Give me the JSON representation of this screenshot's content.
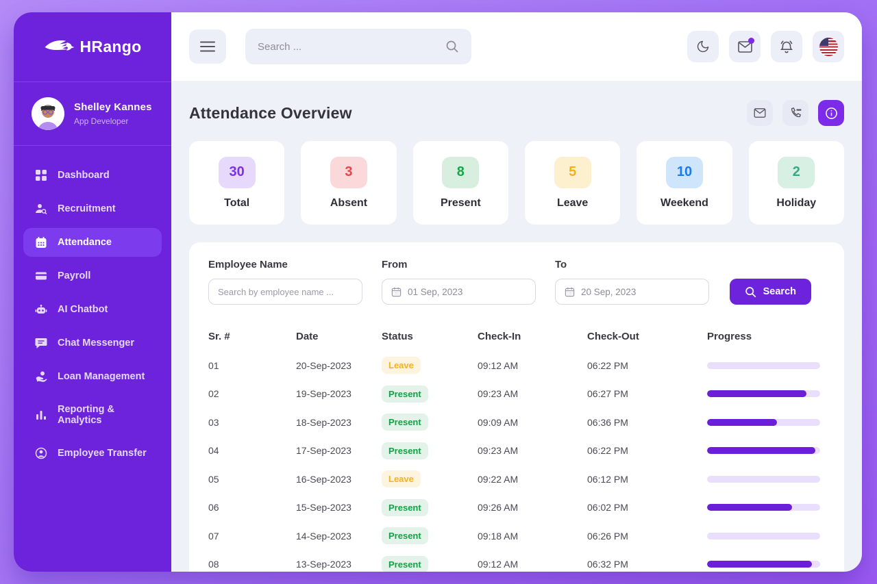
{
  "brand": {
    "name": "HRango",
    "logo_icon": "winged-horse-icon"
  },
  "sidebar": {
    "user": {
      "name": "Shelley Kannes",
      "role": "App Developer"
    },
    "items": [
      {
        "label": "Dashboard",
        "icon": "dashboard-grid-icon",
        "active": false
      },
      {
        "label": "Recruitment",
        "icon": "person-search-icon",
        "active": false
      },
      {
        "label": "Attendance",
        "icon": "calendar-icon",
        "active": true
      },
      {
        "label": "Payroll",
        "icon": "credit-card-icon",
        "active": false
      },
      {
        "label": "AI Chatbot",
        "icon": "robot-icon",
        "active": false
      },
      {
        "label": "Chat Messenger",
        "icon": "chat-bubble-icon",
        "active": false
      },
      {
        "label": "Loan Management",
        "icon": "hand-money-icon",
        "active": false
      },
      {
        "label": "Reporting & Analytics",
        "icon": "bar-chart-icon",
        "active": false
      },
      {
        "label": "Employee Transfer",
        "icon": "person-circle-icon",
        "active": false
      }
    ]
  },
  "topbar": {
    "search_placeholder": "Search ...",
    "icons": [
      "moon-icon",
      "mail-icon-with-badge",
      "bell-icon",
      "us-flag-icon"
    ]
  },
  "page": {
    "title": "Attendance Overview",
    "header_icons": [
      "mail-icon",
      "phone-icon",
      "info-icon"
    ]
  },
  "stats": [
    {
      "label": "Total",
      "value": "30",
      "badge_bg": "#E6D9FC",
      "badge_color": "#7C30E8"
    },
    {
      "label": "Absent",
      "value": "3",
      "badge_bg": "#FBD9DB",
      "badge_color": "#E8434A"
    },
    {
      "label": "Present",
      "value": "8",
      "badge_bg": "#D8EFDF",
      "badge_color": "#17A54B"
    },
    {
      "label": "Leave",
      "value": "5",
      "badge_bg": "#FDF0CE",
      "badge_color": "#F3B119"
    },
    {
      "label": "Weekend",
      "value": "10",
      "badge_bg": "#CFE5FB",
      "badge_color": "#1A7CEC"
    },
    {
      "label": "Holiday",
      "value": "2",
      "badge_bg": "#D7F0E3",
      "badge_color": "#3BA883"
    }
  ],
  "filters": {
    "employee_label": "Employee Name",
    "employee_placeholder": "Search by employee name ...",
    "from_label": "From",
    "from_value": "01 Sep, 2023",
    "to_label": "To",
    "to_value": "20 Sep, 2023",
    "search_label": "Search"
  },
  "table": {
    "headers": [
      "Sr. #",
      "Date",
      "Status",
      "Check-In",
      "Check-Out",
      "Progress"
    ],
    "rows": [
      {
        "sr": "01",
        "date": "20-Sep-2023",
        "status": "Leave",
        "check_in": "09:12 AM",
        "check_out": "06:22 PM",
        "progress": 0
      },
      {
        "sr": "02",
        "date": "19-Sep-2023",
        "status": "Present",
        "check_in": "09:23 AM",
        "check_out": "06:27 PM",
        "progress": 88
      },
      {
        "sr": "03",
        "date": "18-Sep-2023",
        "status": "Present",
        "check_in": "09:09 AM",
        "check_out": "06:36 PM",
        "progress": 62
      },
      {
        "sr": "04",
        "date": "17-Sep-2023",
        "status": "Present",
        "check_in": "09:23 AM",
        "check_out": "06:22 PM",
        "progress": 96
      },
      {
        "sr": "05",
        "date": "16-Sep-2023",
        "status": "Leave",
        "check_in": "09:22 AM",
        "check_out": "06:12 PM",
        "progress": 0
      },
      {
        "sr": "06",
        "date": "15-Sep-2023",
        "status": "Present",
        "check_in": "09:26 AM",
        "check_out": "06:02 PM",
        "progress": 75
      },
      {
        "sr": "07",
        "date": "14-Sep-2023",
        "status": "Present",
        "check_in": "09:18 AM",
        "check_out": "06:26 PM",
        "progress": 0
      },
      {
        "sr": "08",
        "date": "13-Sep-2023",
        "status": "Present",
        "check_in": "09:12 AM",
        "check_out": "06:32 PM",
        "progress": 93
      }
    ]
  },
  "colors": {
    "accent": "#6D23DC",
    "sidebar_active": "#7D3BEE",
    "progress_fill": "#6B1FD8",
    "progress_track": "#E9DEFB",
    "status_present_fg": "#12A245",
    "status_leave_fg": "#F5B120"
  }
}
